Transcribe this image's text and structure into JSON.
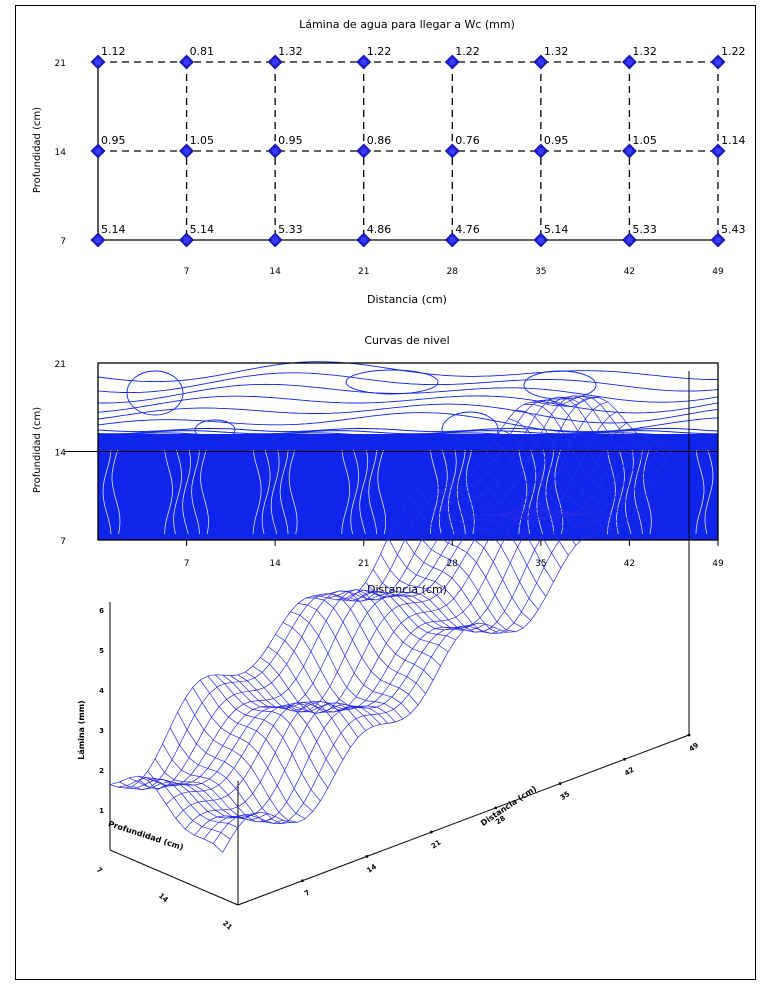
{
  "colors": {
    "marker": "#1e1ecf",
    "fill": "#0f26ea",
    "mesh": "#2a2ae6",
    "contour": "#7f9bff"
  },
  "chart_data": [
    {
      "type": "scatter",
      "title": "Lámina de agua para llegar a Wc (mm)",
      "xlabel": "Distancia (cm)",
      "ylabel": "Profundidad (cm)",
      "x_ticks": [
        "7",
        "14",
        "21",
        "28",
        "35",
        "42",
        "49"
      ],
      "y_ticks": [
        "7",
        "14",
        "21"
      ],
      "x": [
        0,
        7,
        14,
        21,
        28,
        35,
        42,
        49
      ],
      "depths": [
        21,
        14,
        7
      ],
      "labels": [
        [
          "1.12",
          "0.81",
          "1.32",
          "1.22",
          "1.22",
          "1.32",
          "1.32",
          "1.22"
        ],
        [
          "0.95",
          "1.05",
          "0.95",
          "0.86",
          "0.76",
          "0.95",
          "1.05",
          "1.14"
        ],
        [
          "5.14",
          "5.14",
          "5.33",
          "4.86",
          "4.76",
          "5.14",
          "5.33",
          "5.43"
        ]
      ]
    },
    {
      "type": "heatmap",
      "title": "Curvas de nivel",
      "xlabel": "Distancia (cm)",
      "ylabel": "Profundidad (cm)",
      "x_ticks": [
        "7",
        "14",
        "21",
        "28",
        "35",
        "42",
        "49"
      ],
      "y_ticks": [
        "7",
        "14",
        "21"
      ]
    },
    {
      "type": "area",
      "zlabel": "Lámina (mm)",
      "xlabel": "Distancia (cm)",
      "ylabel": "Profundidad (cm)",
      "z_ticks": [
        "1",
        "2",
        "3",
        "4",
        "5",
        "6"
      ],
      "x_ticks": [
        "7",
        "14",
        "21",
        "28",
        "35",
        "42",
        "49"
      ],
      "y_ticks": [
        "7",
        "14",
        "21"
      ]
    }
  ]
}
